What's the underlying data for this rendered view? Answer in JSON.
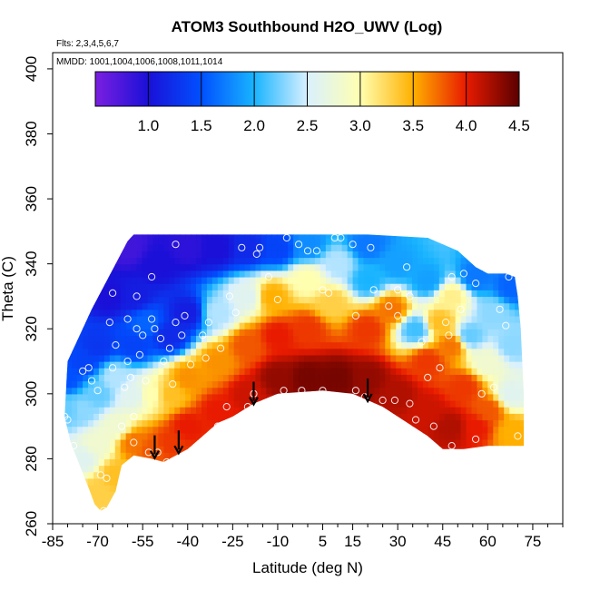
{
  "chart_data": {
    "type": "heatmap",
    "title": "ATOM3 Southbound H2O_UWV (Log)",
    "subtitle_flights": "Flts: 2,3,4,5,6,7",
    "subtitle_dates": "MMDD: 1001,1004,1006,1008,1011,1014",
    "xlabel": "Latitude (deg N)",
    "ylabel": "Theta (C)",
    "xlim": [
      -85,
      85
    ],
    "ylim": [
      260,
      405
    ],
    "x_ticks": [
      -85,
      -70,
      -55,
      -40,
      -25,
      -10,
      5,
      15,
      30,
      45,
      60,
      75
    ],
    "y_ticks": [
      260,
      280,
      300,
      320,
      340,
      360,
      380,
      400
    ],
    "colorbar": {
      "min": 0.5,
      "max": 4.5,
      "ticks": [
        1.0,
        1.5,
        2.0,
        2.5,
        3.0,
        3.5,
        4.0,
        4.5
      ],
      "tick_labels": [
        "1.0",
        "1.5",
        "2.0",
        "2.5",
        "3.0",
        "3.5",
        "4.0",
        "4.5"
      ],
      "stops": [
        {
          "v": 0.5,
          "c": "#7b1fe0"
        },
        {
          "v": 1.0,
          "c": "#1a10d8"
        },
        {
          "v": 1.5,
          "c": "#0050ff"
        },
        {
          "v": 2.0,
          "c": "#19b4ff"
        },
        {
          "v": 2.5,
          "c": "#d9f0ff"
        },
        {
          "v": 3.0,
          "c": "#ffffb0"
        },
        {
          "v": 3.5,
          "c": "#ffb000"
        },
        {
          "v": 4.0,
          "c": "#e81a00"
        },
        {
          "v": 4.5,
          "c": "#5a0000"
        }
      ]
    },
    "upper_boundary": [
      [
        -80,
        310
      ],
      [
        -76,
        318
      ],
      [
        -72,
        326
      ],
      [
        -68,
        333
      ],
      [
        -64,
        340
      ],
      [
        -60,
        347
      ],
      [
        -58,
        349
      ],
      [
        -40,
        349
      ],
      [
        -20,
        349
      ],
      [
        0,
        349
      ],
      [
        20,
        349
      ],
      [
        40,
        348
      ],
      [
        50,
        344
      ],
      [
        56,
        339
      ],
      [
        60,
        337
      ],
      [
        66,
        337
      ],
      [
        69,
        336
      ],
      [
        70,
        330
      ],
      [
        71,
        320
      ],
      [
        72,
        300
      ],
      [
        72,
        285
      ]
    ],
    "lower_boundary": [
      [
        -81,
        293
      ],
      [
        -79,
        285
      ],
      [
        -76,
        278
      ],
      [
        -73,
        271
      ],
      [
        -71,
        266
      ],
      [
        -69,
        264
      ],
      [
        -67,
        265
      ],
      [
        -64,
        270
      ],
      [
        -62,
        278
      ],
      [
        -58,
        281
      ],
      [
        -52,
        280
      ],
      [
        -48,
        279
      ],
      [
        -40,
        283
      ],
      [
        -35,
        287
      ],
      [
        -30,
        291
      ],
      [
        -25,
        293
      ],
      [
        -18,
        297
      ],
      [
        -10,
        300
      ],
      [
        5,
        301
      ],
      [
        15,
        300
      ],
      [
        25,
        296
      ],
      [
        35,
        290
      ],
      [
        40,
        287
      ],
      [
        45,
        283
      ],
      [
        52,
        283
      ],
      [
        60,
        284
      ],
      [
        72,
        284
      ]
    ],
    "field_nodes": [
      {
        "x": -80,
        "y": 295,
        "v": 2.2
      },
      {
        "x": -80,
        "y": 305,
        "v": 1.5
      },
      {
        "x": -75,
        "y": 280,
        "v": 2.6
      },
      {
        "x": -75,
        "y": 295,
        "v": 2.3
      },
      {
        "x": -75,
        "y": 310,
        "v": 1.4
      },
      {
        "x": -70,
        "y": 270,
        "v": 3.3
      },
      {
        "x": -70,
        "y": 285,
        "v": 2.8
      },
      {
        "x": -70,
        "y": 300,
        "v": 2.2
      },
      {
        "x": -70,
        "y": 315,
        "v": 1.3
      },
      {
        "x": -66,
        "y": 330,
        "v": 1.0
      },
      {
        "x": -64,
        "y": 275,
        "v": 3.4
      },
      {
        "x": -64,
        "y": 290,
        "v": 2.8
      },
      {
        "x": -64,
        "y": 305,
        "v": 2.4
      },
      {
        "x": -60,
        "y": 345,
        "v": 0.8
      },
      {
        "x": -58,
        "y": 285,
        "v": 3.7
      },
      {
        "x": -58,
        "y": 300,
        "v": 2.6
      },
      {
        "x": -58,
        "y": 315,
        "v": 1.4
      },
      {
        "x": -58,
        "y": 330,
        "v": 1.1
      },
      {
        "x": -54,
        "y": 322,
        "v": 1.6
      },
      {
        "x": -52,
        "y": 283,
        "v": 3.8
      },
      {
        "x": -52,
        "y": 300,
        "v": 3.0
      },
      {
        "x": -50,
        "y": 340,
        "v": 1.0
      },
      {
        "x": -46,
        "y": 285,
        "v": 3.9
      },
      {
        "x": -46,
        "y": 300,
        "v": 3.4
      },
      {
        "x": -46,
        "y": 318,
        "v": 1.2
      },
      {
        "x": -40,
        "y": 290,
        "v": 4.0
      },
      {
        "x": -40,
        "y": 305,
        "v": 3.6
      },
      {
        "x": -40,
        "y": 325,
        "v": 1.1
      },
      {
        "x": -40,
        "y": 345,
        "v": 0.9
      },
      {
        "x": -30,
        "y": 295,
        "v": 4.0
      },
      {
        "x": -30,
        "y": 310,
        "v": 3.6
      },
      {
        "x": -30,
        "y": 325,
        "v": 2.4
      },
      {
        "x": -30,
        "y": 345,
        "v": 1.0
      },
      {
        "x": -20,
        "y": 300,
        "v": 4.1
      },
      {
        "x": -20,
        "y": 315,
        "v": 3.8
      },
      {
        "x": -20,
        "y": 330,
        "v": 2.6
      },
      {
        "x": -20,
        "y": 345,
        "v": 1.2
      },
      {
        "x": -12,
        "y": 330,
        "v": 3.5
      },
      {
        "x": -10,
        "y": 305,
        "v": 4.3
      },
      {
        "x": -10,
        "y": 318,
        "v": 4.0
      },
      {
        "x": -10,
        "y": 345,
        "v": 1.4
      },
      {
        "x": 0,
        "y": 305,
        "v": 4.4
      },
      {
        "x": 0,
        "y": 320,
        "v": 3.9
      },
      {
        "x": 0,
        "y": 335,
        "v": 3.0
      },
      {
        "x": 0,
        "y": 346,
        "v": 1.8
      },
      {
        "x": 8,
        "y": 328,
        "v": 3.3
      },
      {
        "x": 10,
        "y": 305,
        "v": 4.4
      },
      {
        "x": 10,
        "y": 340,
        "v": 2.4
      },
      {
        "x": 20,
        "y": 305,
        "v": 4.3
      },
      {
        "x": 20,
        "y": 320,
        "v": 3.9
      },
      {
        "x": 20,
        "y": 335,
        "v": 2.0
      },
      {
        "x": 20,
        "y": 346,
        "v": 1.7
      },
      {
        "x": 28,
        "y": 326,
        "v": 3.7
      },
      {
        "x": 30,
        "y": 300,
        "v": 4.2
      },
      {
        "x": 30,
        "y": 340,
        "v": 1.9
      },
      {
        "x": 36,
        "y": 320,
        "v": 2.1
      },
      {
        "x": 40,
        "y": 295,
        "v": 4.1
      },
      {
        "x": 40,
        "y": 310,
        "v": 3.9
      },
      {
        "x": 40,
        "y": 335,
        "v": 1.9
      },
      {
        "x": 44,
        "y": 322,
        "v": 3.4
      },
      {
        "x": 48,
        "y": 290,
        "v": 4.2
      },
      {
        "x": 48,
        "y": 315,
        "v": 3.7
      },
      {
        "x": 48,
        "y": 330,
        "v": 3.1
      },
      {
        "x": 52,
        "y": 302,
        "v": 3.9
      },
      {
        "x": 54,
        "y": 318,
        "v": 2.2
      },
      {
        "x": 56,
        "y": 290,
        "v": 4.0
      },
      {
        "x": 56,
        "y": 336,
        "v": 1.7
      },
      {
        "x": 60,
        "y": 295,
        "v": 3.8
      },
      {
        "x": 60,
        "y": 310,
        "v": 2.8
      },
      {
        "x": 62,
        "y": 325,
        "v": 2.3
      },
      {
        "x": 68,
        "y": 288,
        "v": 3.5
      },
      {
        "x": 68,
        "y": 300,
        "v": 2.6
      },
      {
        "x": 68,
        "y": 315,
        "v": 2.3
      },
      {
        "x": 68,
        "y": 333,
        "v": 1.6
      }
    ],
    "sample_points": [
      [
        -82,
        309
      ],
      [
        -81,
        293
      ],
      [
        -80,
        292
      ],
      [
        -78,
        284
      ],
      [
        -75,
        307
      ],
      [
        -73,
        308
      ],
      [
        -72,
        304
      ],
      [
        -70,
        301
      ],
      [
        -69,
        275
      ],
      [
        -68,
        264
      ],
      [
        -67,
        274
      ],
      [
        -66,
        322
      ],
      [
        -65,
        331
      ],
      [
        -65,
        308
      ],
      [
        -64,
        315
      ],
      [
        -62,
        290
      ],
      [
        -61,
        302
      ],
      [
        -60,
        323
      ],
      [
        -60,
        310
      ],
      [
        -59,
        305
      ],
      [
        -58,
        293
      ],
      [
        -58,
        285
      ],
      [
        -57,
        330
      ],
      [
        -57,
        320
      ],
      [
        -56,
        312
      ],
      [
        -55,
        318
      ],
      [
        -54,
        304
      ],
      [
        -53,
        282
      ],
      [
        -52,
        336
      ],
      [
        -52,
        323
      ],
      [
        -51,
        320
      ],
      [
        -50,
        282
      ],
      [
        -49,
        317
      ],
      [
        -48,
        310
      ],
      [
        -47,
        279
      ],
      [
        -46,
        314
      ],
      [
        -45,
        303
      ],
      [
        -44,
        346
      ],
      [
        -44,
        322
      ],
      [
        -42,
        318
      ],
      [
        -41,
        324
      ],
      [
        -39,
        309
      ],
      [
        -38,
        283
      ],
      [
        -35,
        318
      ],
      [
        -34,
        311
      ],
      [
        -33,
        322
      ],
      [
        -30,
        290
      ],
      [
        -29,
        314
      ],
      [
        -27,
        296
      ],
      [
        -26,
        330
      ],
      [
        -24,
        325
      ],
      [
        -22,
        345
      ],
      [
        -20,
        296
      ],
      [
        -18,
        300
      ],
      [
        -17,
        343
      ],
      [
        -16,
        345
      ],
      [
        -13,
        336
      ],
      [
        -10,
        329
      ],
      [
        -8,
        301
      ],
      [
        -7,
        348
      ],
      [
        -3,
        346
      ],
      [
        -2,
        301
      ],
      [
        0,
        344
      ],
      [
        3,
        344
      ],
      [
        5,
        301
      ],
      [
        5,
        332
      ],
      [
        7,
        331
      ],
      [
        9,
        348
      ],
      [
        11,
        348
      ],
      [
        15,
        346
      ],
      [
        16,
        324
      ],
      [
        16,
        301
      ],
      [
        19,
        299
      ],
      [
        21,
        345
      ],
      [
        22,
        332
      ],
      [
        25,
        298
      ],
      [
        27,
        327
      ],
      [
        29,
        298
      ],
      [
        30,
        332
      ],
      [
        30,
        324
      ],
      [
        33,
        339
      ],
      [
        34,
        330
      ],
      [
        34,
        297
      ],
      [
        36,
        292
      ],
      [
        38,
        316
      ],
      [
        40,
        305
      ],
      [
        42,
        290
      ],
      [
        44,
        308
      ],
      [
        46,
        322
      ],
      [
        47,
        318
      ],
      [
        48,
        284
      ],
      [
        48,
        336
      ],
      [
        51,
        326
      ],
      [
        52,
        337
      ],
      [
        55,
        343
      ],
      [
        56,
        334
      ],
      [
        56,
        286
      ],
      [
        58,
        300
      ],
      [
        60,
        342
      ],
      [
        62,
        302
      ],
      [
        64,
        326
      ],
      [
        66,
        321
      ],
      [
        67,
        336
      ],
      [
        70,
        287
      ]
    ],
    "arrows": [
      {
        "lat": -51.0,
        "theta": 280.5
      },
      {
        "lat": -43.0,
        "theta": 282.0
      },
      {
        "lat": -18.0,
        "theta": 297.0
      },
      {
        "lat": 20.0,
        "theta": 298.0
      }
    ]
  }
}
